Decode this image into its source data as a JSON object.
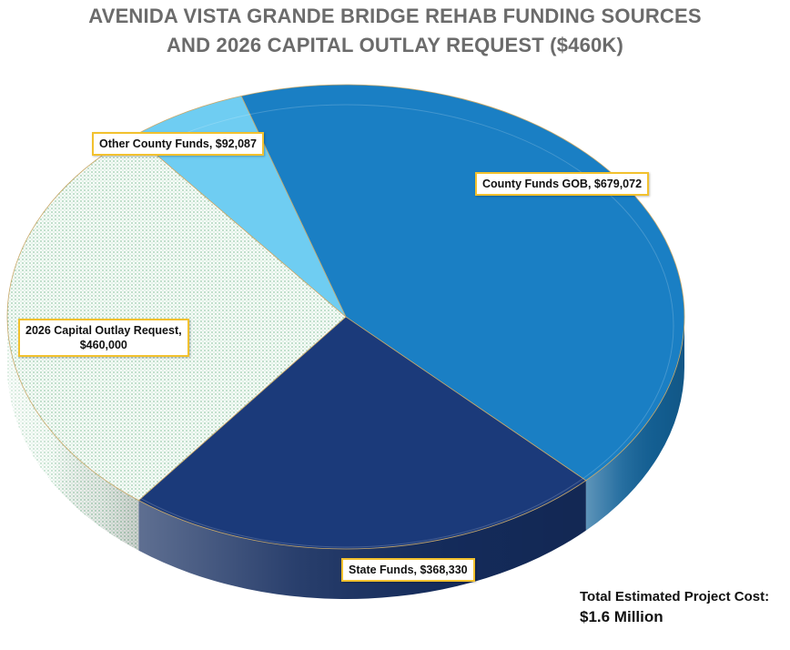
{
  "chart_data": {
    "type": "pie",
    "title_line1": "AVENIDA VISTA GRANDE BRIDGE REHAB FUNDING SOURCES",
    "title_line2": "AND 2026 CAPITAL OUTLAY REQUEST ($460K)",
    "slices": [
      {
        "label": "County Funds GOB, $679,072",
        "value": 679072,
        "color": "#1a7fc4"
      },
      {
        "label": "State Funds, $368,330",
        "value": 368330,
        "color": "#1b3a7a"
      },
      {
        "label": "2026 Capital Outlay Request, $460,000",
        "value": 460000,
        "color": "#f4faf6",
        "pattern": "green-dots"
      },
      {
        "label": "Other County Funds, $92,087",
        "value": 92087,
        "color": "#6fcdf2"
      }
    ],
    "annotation_line1": "Total Estimated Project Cost:",
    "annotation_line2": "$1.6 Million"
  },
  "labels": {
    "county": "County Funds GOB, $679,072",
    "state": "State Funds, $368,330",
    "capital_l1": "2026 Capital Outlay Request,",
    "capital_l2": "$460,000",
    "other": "Other County Funds, $92,087"
  },
  "colors": {
    "title": "#6b6b6b",
    "callout_border": "#f2c12e"
  }
}
